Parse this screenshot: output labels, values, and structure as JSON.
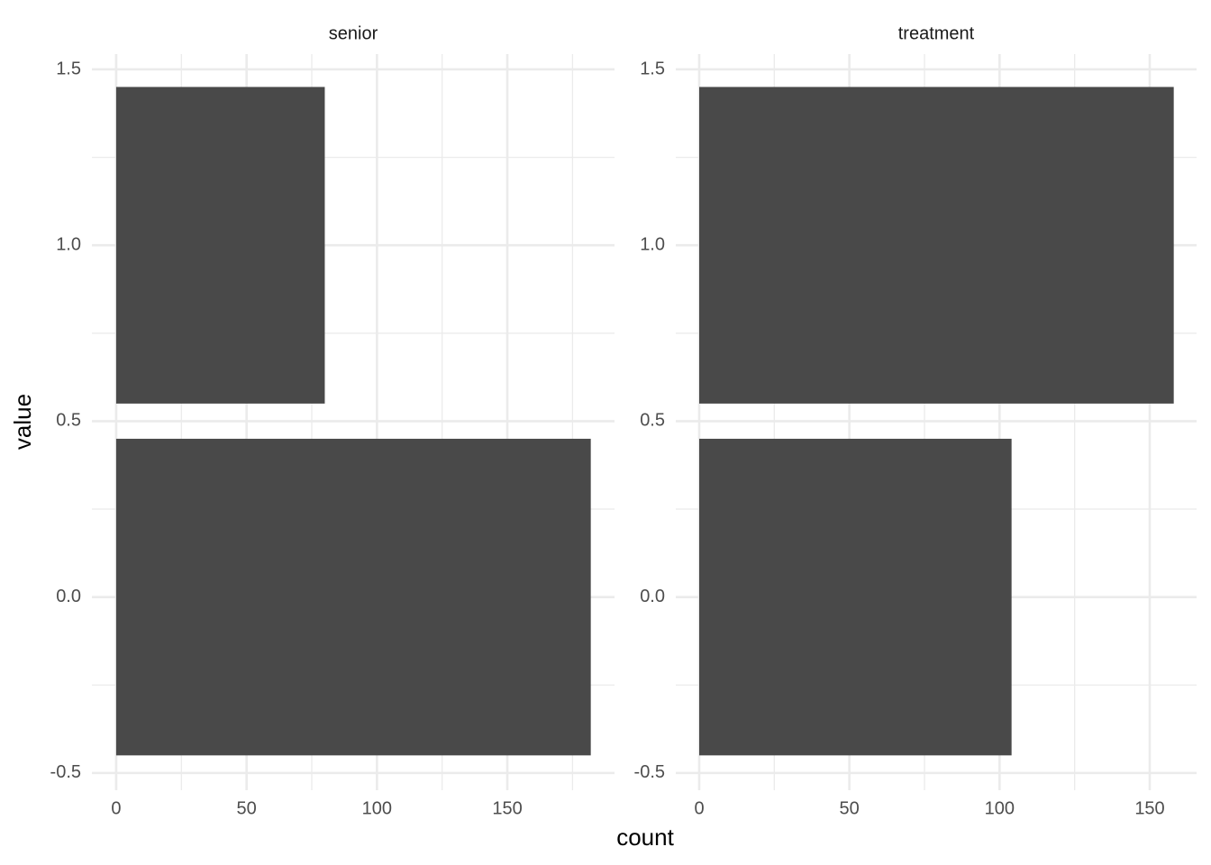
{
  "chart_data": {
    "type": "bar",
    "orientation": "horizontal",
    "color": "#494949",
    "grid": true,
    "xlabel": "count",
    "ylabel": "value",
    "y": [
      0,
      1
    ],
    "bar_width": 0.9,
    "ylim": [
      -0.549,
      1.5435
    ],
    "yticks": [
      -0.5,
      {
        "value": 0,
        "label": "0.0"
      },
      0.5,
      {
        "value": 1,
        "label": "1.0"
      },
      1.5
    ],
    "y_minor_ticks": [
      -0.25,
      0.25,
      0.75,
      1.25
    ],
    "panels": [
      {
        "title": "senior",
        "values": [
          182,
          80
        ],
        "xlim": [
          -9.3,
          191.1
        ],
        "xticks": [
          0,
          50,
          100,
          150
        ],
        "x_minor_ticks": [
          25,
          75,
          125,
          175
        ]
      },
      {
        "title": "treatment",
        "values": [
          104,
          158
        ],
        "xlim": [
          -7.8,
          165.6
        ],
        "xticks": [
          0,
          50,
          100,
          150
        ],
        "x_minor_ticks": [
          25,
          75,
          125
        ]
      }
    ]
  }
}
